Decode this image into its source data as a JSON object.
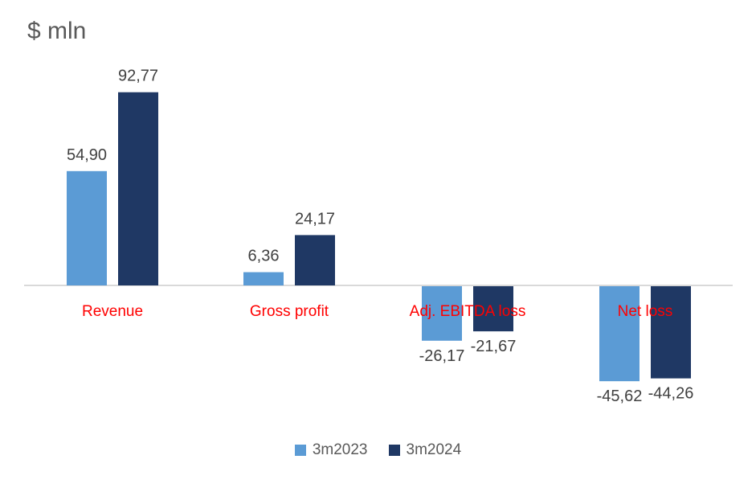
{
  "chart_data": {
    "type": "bar",
    "unit_title": "$ mln",
    "categories": [
      "Revenue",
      "Gross profit",
      "Adj. EBITDA loss",
      "Net loss"
    ],
    "series": [
      {
        "name": "3m2023",
        "color": "#5b9bd5",
        "values": [
          54.9,
          6.36,
          -26.17,
          -45.62
        ],
        "labels": [
          "54,90",
          "6,36",
          "-26,17",
          "-45,62"
        ]
      },
      {
        "name": "3m2024",
        "color": "#1f3864",
        "values": [
          92.77,
          24.17,
          -21.67,
          -44.26
        ],
        "labels": [
          "92,77",
          "24,17",
          "-21,67",
          "-44,26"
        ]
      }
    ],
    "category_label_color": "#ff0000",
    "ylim": [
      -60,
      100
    ],
    "grid": false,
    "legend_position": "bottom"
  }
}
